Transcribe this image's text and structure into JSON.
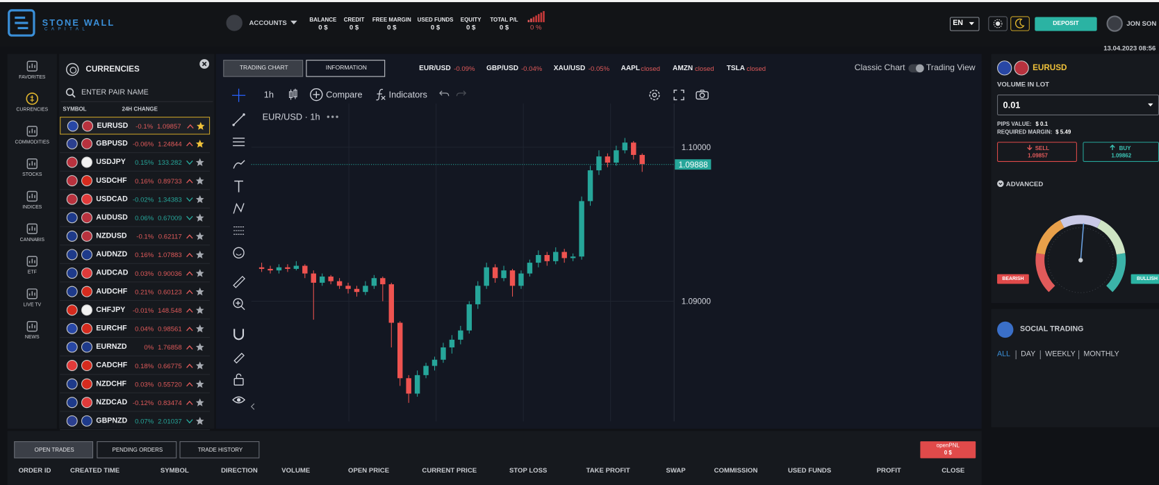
{
  "header": {
    "brand": "STONE WALL",
    "brand_sub": "CAPITAL",
    "accounts": "ACCOUNTS",
    "stats": [
      {
        "label": "BALANCE",
        "value": "0 $"
      },
      {
        "label": "CREDIT",
        "value": "0 $"
      },
      {
        "label": "FREE MARGIN",
        "value": "0 $"
      },
      {
        "label": "USED FUNDS",
        "value": "0 $"
      },
      {
        "label": "EQUITY",
        "value": "0 $"
      },
      {
        "label": "TOTAL P/L",
        "value": "0 $"
      }
    ],
    "pl_percent": "0 %",
    "language": "EN",
    "deposit": "DEPOSIT",
    "user": "JON SON",
    "datetime": "13.04.2023 08:56"
  },
  "sidebar": [
    "FAVORITES",
    "CURRENCIES",
    "COMMODITIES",
    "STOCKS",
    "INDICES",
    "CANNABIS",
    "ETF",
    "LIVE TV",
    "NEWS"
  ],
  "currencies": {
    "title": "CURRENCIES",
    "search": "ENTER PAIR NAME",
    "columns": [
      "SYMBOL",
      "24H CHANGE"
    ],
    "rows": [
      {
        "symbol": "EURUSD",
        "change": "-0.1%",
        "price": "1.09857",
        "trend": "up",
        "favorite": true,
        "flag_colors": [
          "#2847a5",
          "#b8323e"
        ]
      },
      {
        "symbol": "GBPUSD",
        "change": "-0.06%",
        "price": "1.24844",
        "trend": "up",
        "favorite": true,
        "flag_colors": [
          "#2b3f8f",
          "#b8323e"
        ]
      },
      {
        "symbol": "USDJPY",
        "change": "0.15%",
        "price": "133.282",
        "trend": "down",
        "favorite": false,
        "flag_colors": [
          "#b8323e",
          "#f2f2f2"
        ]
      },
      {
        "symbol": "USDCHF",
        "change": "0.16%",
        "price": "0.89733",
        "trend": "up",
        "favorite": false,
        "flag_colors": [
          "#b8323e",
          "#d52b1e"
        ]
      },
      {
        "symbol": "USDCAD",
        "change": "-0.02%",
        "price": "1.34383",
        "trend": "down",
        "favorite": false,
        "flag_colors": [
          "#b8323e",
          "#e03a3a"
        ]
      },
      {
        "symbol": "AUDUSD",
        "change": "0.06%",
        "price": "0.67009",
        "trend": "down",
        "favorite": false,
        "flag_colors": [
          "#1e3a8a",
          "#b8323e"
        ]
      },
      {
        "symbol": "NZDUSD",
        "change": "-0.1%",
        "price": "0.62117",
        "trend": "up",
        "favorite": false,
        "flag_colors": [
          "#1e3a8a",
          "#b8323e"
        ]
      },
      {
        "symbol": "AUDNZD",
        "change": "0.16%",
        "price": "1.07883",
        "trend": "up",
        "favorite": false,
        "flag_colors": [
          "#1e3a8a",
          "#1e3a8a"
        ]
      },
      {
        "symbol": "AUDCAD",
        "change": "0.03%",
        "price": "0.90036",
        "trend": "up",
        "favorite": false,
        "flag_colors": [
          "#1e3a8a",
          "#e03a3a"
        ]
      },
      {
        "symbol": "AUDCHF",
        "change": "0.21%",
        "price": "0.60123",
        "trend": "up",
        "favorite": false,
        "flag_colors": [
          "#1e3a8a",
          "#d52b1e"
        ]
      },
      {
        "symbol": "CHFJPY",
        "change": "-0.01%",
        "price": "148.548",
        "trend": "up",
        "favorite": false,
        "flag_colors": [
          "#d52b1e",
          "#f2f2f2"
        ]
      },
      {
        "symbol": "EURCHF",
        "change": "0.04%",
        "price": "0.98561",
        "trend": "up",
        "favorite": false,
        "flag_colors": [
          "#2847a5",
          "#d52b1e"
        ]
      },
      {
        "symbol": "EURNZD",
        "change": "0%",
        "price": "1.76858",
        "trend": "up",
        "favorite": false,
        "flag_colors": [
          "#2847a5",
          "#1e3a8a"
        ]
      },
      {
        "symbol": "CADCHF",
        "change": "0.18%",
        "price": "0.66775",
        "trend": "up",
        "favorite": false,
        "flag_colors": [
          "#e03a3a",
          "#d52b1e"
        ]
      },
      {
        "symbol": "NZDCHF",
        "change": "0.03%",
        "price": "0.55720",
        "trend": "up",
        "favorite": false,
        "flag_colors": [
          "#1e3a8a",
          "#d52b1e"
        ]
      },
      {
        "symbol": "NZDCAD",
        "change": "-0.12%",
        "price": "0.83474",
        "trend": "up",
        "favorite": false,
        "flag_colors": [
          "#1e3a8a",
          "#e03a3a"
        ]
      },
      {
        "symbol": "GBPNZD",
        "change": "0.07%",
        "price": "2.01037",
        "trend": "down",
        "favorite": false,
        "flag_colors": [
          "#2b3f8f",
          "#1e3a8a"
        ]
      }
    ]
  },
  "chart_panel": {
    "tabs": [
      "TRADING CHART",
      "INFORMATION"
    ],
    "ticker": [
      {
        "name": "EUR/USD",
        "change": "-0.09%"
      },
      {
        "name": "GBP/USD",
        "change": "-0.04%"
      },
      {
        "name": "XAU/USD",
        "change": "-0.05%"
      },
      {
        "name": "AAPL",
        "change": "closed"
      },
      {
        "name": "AMZN",
        "change": "closed"
      },
      {
        "name": "TSLA",
        "change": "closed"
      }
    ],
    "classic": "Classic Chart",
    "tradingview": "Trading View",
    "interval": "1h",
    "compare": "Compare",
    "indicators": "Indicators"
  },
  "chart": {
    "type": "candlestick",
    "title": "EUR/USD · 1h",
    "up_color": "#26a69a",
    "down_color": "#ef5350",
    "grid": true,
    "ylim": [
      1.0822,
      1.1026
    ],
    "yticks": [
      {
        "value": 1.1,
        "label": "1.10000"
      },
      {
        "value": 1.09,
        "label": "1.09000"
      }
    ],
    "last_price": 1.09888,
    "open": [
      1.0922,
      1.0921,
      1.092,
      1.0922,
      1.0921,
      1.0923,
      1.0918,
      1.0912,
      1.0916,
      1.0913,
      1.091,
      1.0908,
      1.0906,
      1.091,
      1.0915,
      1.0911,
      1.0886,
      1.085,
      1.084,
      1.0852,
      1.0858,
      1.0862,
      1.087,
      1.0875,
      1.0881,
      1.0898,
      1.091,
      1.0922,
      1.0915,
      1.092,
      1.091,
      1.0918,
      1.0925,
      1.093,
      1.0926,
      1.0932,
      1.0928,
      1.0929,
      1.0965,
      1.0985,
      1.0994,
      1.099,
      1.0998,
      1.1003,
      1.0995
    ],
    "high": [
      1.0925,
      1.0923,
      1.0924,
      1.0924,
      1.0926,
      1.0924,
      1.092,
      1.0918,
      1.0917,
      1.0915,
      1.0912,
      1.091,
      1.0913,
      1.0917,
      1.0916,
      1.0912,
      1.0887,
      1.0852,
      1.0855,
      1.086,
      1.0864,
      1.0873,
      1.0878,
      1.0884,
      1.09,
      1.0913,
      1.0925,
      1.0924,
      1.0923,
      1.0921,
      1.092,
      1.0927,
      1.0933,
      1.0932,
      1.0935,
      1.0934,
      1.0931,
      1.0968,
      1.0988,
      1.0998,
      1.0996,
      1.1001,
      1.1006,
      1.1004,
      1.0996
    ],
    "low": [
      1.0919,
      1.0918,
      1.0918,
      1.0919,
      1.092,
      1.0915,
      1.0888,
      1.091,
      1.0911,
      1.0908,
      1.0905,
      1.0903,
      1.0904,
      1.0908,
      1.09,
      1.087,
      1.0845,
      1.0834,
      1.0838,
      1.085,
      1.0855,
      1.086,
      1.0866,
      1.0872,
      1.0879,
      1.0895,
      1.0908,
      1.0912,
      1.0913,
      1.0903,
      1.0908,
      1.0916,
      1.0922,
      1.0923,
      1.0924,
      1.0925,
      1.0926,
      1.0927,
      1.0962,
      1.0982,
      1.0987,
      1.0988,
      1.0996,
      1.0992,
      1.0984
    ],
    "close": [
      1.0921,
      1.092,
      1.0922,
      1.0921,
      1.0923,
      1.0918,
      1.0912,
      1.0916,
      1.0913,
      1.091,
      1.0908,
      1.0906,
      1.091,
      1.0915,
      1.0911,
      1.0886,
      1.085,
      1.084,
      1.0852,
      1.0858,
      1.0862,
      1.087,
      1.0875,
      1.0881,
      1.0898,
      1.091,
      1.0922,
      1.0915,
      1.092,
      1.091,
      1.0918,
      1.0925,
      1.093,
      1.0926,
      1.0932,
      1.0928,
      1.0929,
      1.0965,
      1.0985,
      1.0994,
      1.099,
      1.0998,
      1.1003,
      1.0995,
      1.0989
    ]
  },
  "order": {
    "symbol": "EURUSD",
    "volume_label": "VOLUME IN LOT",
    "volume": "0.01",
    "pips_label": "PIPS VALUE:",
    "pips": "$ 0.1",
    "margin_label": "REQUIRED MARGIN:",
    "margin": "$ 5.49",
    "sell": "SELL",
    "sell_price": "1.09857",
    "buy": "BUY",
    "buy_price": "1.09862",
    "advanced": "ADVANCED",
    "bearish": "BEARISH",
    "bullish": "BULLISH"
  },
  "social": {
    "title": "SOCIAL TRADING",
    "filters": [
      "ALL",
      "DAY",
      "WEEKLY",
      "MONTHLY"
    ]
  },
  "trades": {
    "tabs": [
      "OPEN TRADES",
      "PENDING ORDERS",
      "TRADE HISTORY"
    ],
    "pnl_label": "openPNL",
    "pnl": "0 $",
    "columns": [
      "ORDER ID",
      "CREATED TIME",
      "SYMBOL",
      "DIRECTION",
      "VOLUME",
      "OPEN PRICE",
      "CURRENT PRICE",
      "STOP LOSS",
      "TAKE PROFIT",
      "SWAP",
      "COMMISSION",
      "USED FUNDS",
      "PROFIT",
      "CLOSE"
    ]
  }
}
